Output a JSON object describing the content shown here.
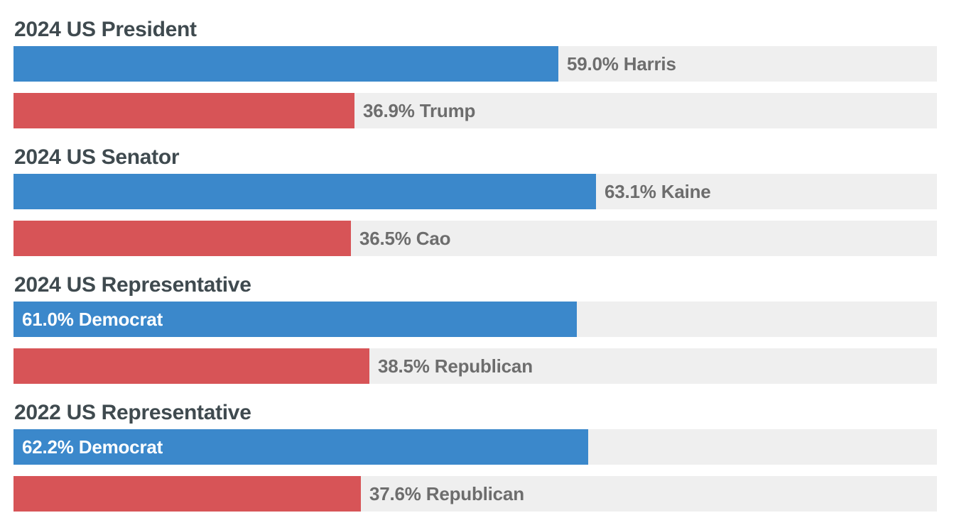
{
  "colors": {
    "democrat": "#3b88cb",
    "republican": "#d75457",
    "track": "#efefef"
  },
  "chart_data": {
    "type": "bar",
    "orientation": "horizontal",
    "xlim": [
      0,
      100
    ],
    "grid": false,
    "races": [
      {
        "title": "2024 US President",
        "bars": [
          {
            "party": "democrat",
            "value": 59.0,
            "label": "59.0% Harris",
            "label_position": "outside"
          },
          {
            "party": "republican",
            "value": 36.9,
            "label": "36.9% Trump",
            "label_position": "outside"
          }
        ]
      },
      {
        "title": "2024 US Senator",
        "bars": [
          {
            "party": "democrat",
            "value": 63.1,
            "label": "63.1% Kaine",
            "label_position": "outside"
          },
          {
            "party": "republican",
            "value": 36.5,
            "label": "36.5% Cao",
            "label_position": "outside"
          }
        ]
      },
      {
        "title": "2024 US Representative",
        "bars": [
          {
            "party": "democrat",
            "value": 61.0,
            "label": "61.0% Democrat",
            "label_position": "inside"
          },
          {
            "party": "republican",
            "value": 38.5,
            "label": "38.5% Republican",
            "label_position": "outside"
          }
        ]
      },
      {
        "title": "2022 US Representative",
        "bars": [
          {
            "party": "democrat",
            "value": 62.2,
            "label": "62.2% Democrat",
            "label_position": "inside"
          },
          {
            "party": "republican",
            "value": 37.6,
            "label": "37.6% Republican",
            "label_position": "outside"
          }
        ]
      }
    ]
  }
}
